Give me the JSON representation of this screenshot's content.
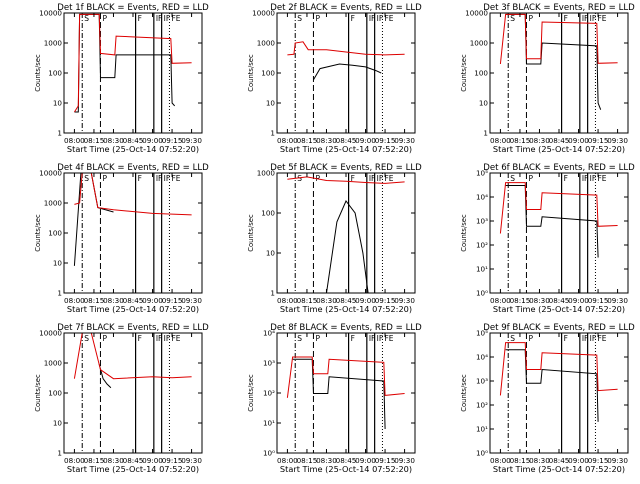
{
  "figure": {
    "xlabel": "Start Time (25-Oct-14 07:52:20)",
    "ylabel": "Counts/sec",
    "colors": {
      "events": "#000000",
      "lld": "#dd0000",
      "axis": "#000000",
      "background": "#ffffff"
    }
  },
  "chart_data": [
    {
      "type": "line",
      "title": "Det 1f BLACK = Events, RED = LLD",
      "x_ticks": [
        "08:00",
        "08:15",
        "08:30",
        "08:45",
        "09:00",
        "09:15",
        "09:30"
      ],
      "y_ticks": [
        "1",
        "10",
        "100",
        "1000",
        "10000"
      ],
      "ylim": [
        1,
        10000
      ],
      "yscale": "log",
      "markers": [
        {
          "label": "S",
          "x": "08:06"
        },
        {
          "label": "P",
          "x": "08:20"
        },
        {
          "label": "F",
          "x": "08:47"
        },
        {
          "label": "IF",
          "x": "09:01"
        },
        {
          "label": "IF",
          "x": "09:07"
        },
        {
          "label": "FE",
          "x": "09:13"
        }
      ],
      "series": [
        {
          "name": "Events",
          "points": [
            [
              "08:00",
              5
            ],
            [
              "08:03",
              5
            ],
            [
              "08:04",
              9000
            ],
            [
              "08:19",
              9000
            ],
            [
              "08:20",
              70
            ],
            [
              "08:31",
              70
            ],
            [
              "08:32",
              400
            ],
            [
              "09:14",
              400
            ],
            [
              "09:15",
              10
            ],
            [
              "09:17",
              8
            ]
          ]
        },
        {
          "name": "LLD",
          "points": [
            [
              "08:00",
              5
            ],
            [
              "08:03",
              8
            ],
            [
              "08:04",
              9000
            ],
            [
              "08:19",
              9000
            ],
            [
              "08:20",
              450
            ],
            [
              "08:31",
              400
            ],
            [
              "08:32",
              1700
            ],
            [
              "09:14",
              1400
            ],
            [
              "09:15",
              210
            ],
            [
              "09:30",
              220
            ]
          ]
        }
      ]
    },
    {
      "type": "line",
      "title": "Det 2f BLACK = Events, RED = LLD",
      "x_ticks": [
        "08:00",
        "08:15",
        "08:30",
        "08:45",
        "09:00",
        "09:15",
        "09:30"
      ],
      "y_ticks": [
        "1",
        "10",
        "100",
        "1000",
        "10000"
      ],
      "ylim": [
        1,
        10000
      ],
      "yscale": "log",
      "markers": [
        {
          "label": "S",
          "x": "08:06"
        },
        {
          "label": "P",
          "x": "08:20"
        },
        {
          "label": "F",
          "x": "08:47"
        },
        {
          "label": "IF",
          "x": "09:01"
        },
        {
          "label": "IF",
          "x": "09:07"
        },
        {
          "label": "FE",
          "x": "09:13"
        }
      ],
      "series": [
        {
          "name": "Events",
          "points": [
            [
              "08:20",
              60
            ],
            [
              "08:25",
              140
            ],
            [
              "08:40",
              200
            ],
            [
              "08:50",
              180
            ],
            [
              "09:00",
              160
            ],
            [
              "09:08",
              120
            ],
            [
              "09:12",
              100
            ]
          ]
        },
        {
          "name": "LLD",
          "points": [
            [
              "08:00",
              400
            ],
            [
              "08:05",
              420
            ],
            [
              "08:06",
              1000
            ],
            [
              "08:12",
              1100
            ],
            [
              "08:16",
              600
            ],
            [
              "08:30",
              600
            ],
            [
              "08:45",
              500
            ],
            [
              "09:00",
              420
            ],
            [
              "09:15",
              400
            ],
            [
              "09:30",
              420
            ]
          ]
        }
      ]
    },
    {
      "type": "line",
      "title": "Det 3f BLACK = Events, RED = LLD",
      "x_ticks": [
        "08:00",
        "08:15",
        "08:30",
        "08:45",
        "09:00",
        "09:15",
        "09:30"
      ],
      "y_ticks": [
        "1",
        "10",
        "100",
        "1000",
        "10000"
      ],
      "ylim": [
        1,
        10000
      ],
      "yscale": "log",
      "markers": [
        {
          "label": "S",
          "x": "08:06"
        },
        {
          "label": "P",
          "x": "08:20"
        },
        {
          "label": "F",
          "x": "08:47"
        },
        {
          "label": "IF",
          "x": "09:01"
        },
        {
          "label": "IF",
          "x": "09:07"
        },
        {
          "label": "FE",
          "x": "09:13"
        }
      ],
      "series": [
        {
          "name": "Events",
          "points": [
            [
              "08:04",
              9000
            ],
            [
              "08:19",
              9000
            ],
            [
              "08:20",
              200
            ],
            [
              "08:31",
              200
            ],
            [
              "08:32",
              1000
            ],
            [
              "09:14",
              800
            ],
            [
              "09:15",
              10
            ],
            [
              "09:17",
              6
            ]
          ]
        },
        {
          "name": "LLD",
          "points": [
            [
              "08:00",
              200
            ],
            [
              "08:04",
              9000
            ],
            [
              "08:19",
              9000
            ],
            [
              "08:20",
              300
            ],
            [
              "08:31",
              300
            ],
            [
              "08:32",
              5000
            ],
            [
              "09:14",
              4500
            ],
            [
              "09:15",
              210
            ],
            [
              "09:30",
              220
            ]
          ]
        }
      ]
    },
    {
      "type": "line",
      "title": "Det 4f BLACK = Events, RED = LLD",
      "x_ticks": [
        "08:00",
        "08:15",
        "08:30",
        "08:45",
        "09:00",
        "09:15",
        "09:30"
      ],
      "y_ticks": [
        "1",
        "10",
        "100",
        "1000",
        "10000"
      ],
      "ylim": [
        1,
        10000
      ],
      "yscale": "log",
      "markers": [
        {
          "label": "S",
          "x": "08:06"
        },
        {
          "label": "P",
          "x": "08:20"
        },
        {
          "label": "F",
          "x": "08:47"
        },
        {
          "label": "IF",
          "x": "09:01"
        },
        {
          "label": "IF",
          "x": "09:07"
        },
        {
          "label": "FE",
          "x": "09:13"
        }
      ],
      "series": [
        {
          "name": "Events",
          "points": [
            [
              "08:00",
              8
            ],
            [
              "08:05",
              10000
            ],
            [
              "08:13",
              10000
            ],
            [
              "08:18",
              700
            ],
            [
              "08:30",
              500
            ]
          ]
        },
        {
          "name": "LLD",
          "points": [
            [
              "08:00",
              900
            ],
            [
              "08:04",
              1000
            ],
            [
              "08:06",
              10000
            ],
            [
              "08:13",
              10000
            ],
            [
              "08:18",
              700
            ],
            [
              "08:30",
              600
            ],
            [
              "09:00",
              450
            ],
            [
              "09:30",
              400
            ]
          ]
        }
      ]
    },
    {
      "type": "line",
      "title": "Det 5f BLACK = Events, RED = LLD",
      "x_ticks": [
        "08:00",
        "08:15",
        "08:30",
        "08:45",
        "09:00",
        "09:15",
        "09:30"
      ],
      "y_ticks": [
        "1",
        "10",
        "100",
        "1000"
      ],
      "ylim": [
        1,
        1000
      ],
      "yscale": "log",
      "markers": [
        {
          "label": "S",
          "x": "08:06"
        },
        {
          "label": "P",
          "x": "08:20"
        },
        {
          "label": "F",
          "x": "08:47"
        },
        {
          "label": "IF",
          "x": "09:01"
        },
        {
          "label": "IF",
          "x": "09:07"
        },
        {
          "label": "FE",
          "x": "09:13"
        }
      ],
      "series": [
        {
          "name": "Events",
          "points": [
            [
              "08:30",
              1
            ],
            [
              "08:38",
              60
            ],
            [
              "08:45",
              200
            ],
            [
              "08:52",
              100
            ],
            [
              "08:58",
              10
            ],
            [
              "09:02",
              1
            ]
          ]
        },
        {
          "name": "LLD",
          "points": [
            [
              "08:00",
              700
            ],
            [
              "08:15",
              800
            ],
            [
              "08:30",
              650
            ],
            [
              "08:45",
              620
            ],
            [
              "09:00",
              580
            ],
            [
              "09:15",
              550
            ],
            [
              "09:30",
              600
            ]
          ]
        }
      ]
    },
    {
      "type": "line",
      "title": "Det 6f BLACK = Events, RED = LLD",
      "x_ticks": [
        "08:00",
        "08:15",
        "08:30",
        "08:45",
        "09:00",
        "09:15",
        "09:30"
      ],
      "y_ticks": [
        "10⁰",
        "10¹",
        "10²",
        "10³",
        "10⁴",
        "10⁵"
      ],
      "ylim": [
        1,
        100000
      ],
      "yscale": "log",
      "markers": [
        {
          "label": "S",
          "x": "08:06"
        },
        {
          "label": "P",
          "x": "08:20"
        },
        {
          "label": "F",
          "x": "08:47"
        },
        {
          "label": "IF",
          "x": "09:01"
        },
        {
          "label": "IF",
          "x": "09:07"
        },
        {
          "label": "FE",
          "x": "09:13"
        }
      ],
      "series": [
        {
          "name": "Events",
          "points": [
            [
              "08:04",
              30000
            ],
            [
              "08:19",
              30000
            ],
            [
              "08:20",
              600
            ],
            [
              "08:31",
              600
            ],
            [
              "08:32",
              1500
            ],
            [
              "09:14",
              1000
            ],
            [
              "09:15",
              30
            ]
          ]
        },
        {
          "name": "LLD",
          "points": [
            [
              "08:00",
              300
            ],
            [
              "08:04",
              40000
            ],
            [
              "08:19",
              40000
            ],
            [
              "08:20",
              3000
            ],
            [
              "08:31",
              3000
            ],
            [
              "08:32",
              15000
            ],
            [
              "09:14",
              12000
            ],
            [
              "09:15",
              600
            ],
            [
              "09:30",
              650
            ]
          ]
        }
      ]
    },
    {
      "type": "line",
      "title": "Det 7f BLACK = Events, RED = LLD",
      "x_ticks": [
        "08:00",
        "08:15",
        "08:30",
        "08:45",
        "09:00",
        "09:15",
        "09:30"
      ],
      "y_ticks": [
        "1",
        "10",
        "100",
        "1000",
        "10000"
      ],
      "ylim": [
        1,
        10000
      ],
      "yscale": "log",
      "markers": [
        {
          "label": "S",
          "x": "08:06"
        },
        {
          "label": "P",
          "x": "08:20"
        },
        {
          "label": "F",
          "x": "08:47"
        },
        {
          "label": "IF",
          "x": "09:01"
        },
        {
          "label": "IF",
          "x": "09:07"
        },
        {
          "label": "FE",
          "x": "09:13"
        }
      ],
      "series": [
        {
          "name": "Events",
          "points": [
            [
              "08:19",
              900
            ],
            [
              "08:22",
              300
            ],
            [
              "08:25",
              200
            ],
            [
              "08:28",
              150
            ]
          ]
        },
        {
          "name": "LLD",
          "points": [
            [
              "08:00",
              300
            ],
            [
              "08:06",
              10000
            ],
            [
              "08:13",
              10000
            ],
            [
              "08:20",
              600
            ],
            [
              "08:30",
              300
            ],
            [
              "09:00",
              350
            ],
            [
              "09:15",
              320
            ],
            [
              "09:30",
              350
            ]
          ]
        }
      ]
    },
    {
      "type": "line",
      "title": "Det 8f BLACK = Events, RED = LLD",
      "x_ticks": [
        "08:00",
        "08:15",
        "08:30",
        "08:45",
        "09:00",
        "09:15",
        "09:30"
      ],
      "y_ticks": [
        "10⁰",
        "10¹",
        "10²",
        "10³",
        "10⁴"
      ],
      "ylim": [
        1,
        100000
      ],
      "yscale": "log",
      "markers": [
        {
          "label": "S",
          "x": "08:06"
        },
        {
          "label": "P",
          "x": "08:20"
        },
        {
          "label": "F",
          "x": "08:47"
        },
        {
          "label": "IF",
          "x": "09:01"
        },
        {
          "label": "IF",
          "x": "09:07"
        },
        {
          "label": "FE",
          "x": "09:13"
        }
      ],
      "series": [
        {
          "name": "Events",
          "points": [
            [
              "08:04",
              8000
            ],
            [
              "08:19",
              8000
            ],
            [
              "08:20",
              300
            ],
            [
              "08:31",
              300
            ],
            [
              "08:32",
              1500
            ],
            [
              "09:14",
              1000
            ],
            [
              "09:15",
              10
            ]
          ]
        },
        {
          "name": "LLD",
          "points": [
            [
              "08:00",
              200
            ],
            [
              "08:04",
              10000
            ],
            [
              "08:19",
              10000
            ],
            [
              "08:20",
              2000
            ],
            [
              "08:31",
              2000
            ],
            [
              "08:32",
              8000
            ],
            [
              "09:14",
              6000
            ],
            [
              "09:15",
              250
            ],
            [
              "09:30",
              300
            ]
          ]
        }
      ]
    },
    {
      "type": "line",
      "title": "Det 9f BLACK = Events, RED = LLD",
      "x_ticks": [
        "08:00",
        "08:15",
        "08:30",
        "08:45",
        "09:00",
        "09:15",
        "09:30"
      ],
      "y_ticks": [
        "10⁰",
        "10¹",
        "10²",
        "10³",
        "10⁴",
        "10⁵"
      ],
      "ylim": [
        1,
        100000
      ],
      "yscale": "log",
      "markers": [
        {
          "label": "S",
          "x": "08:06"
        },
        {
          "label": "P",
          "x": "08:20"
        },
        {
          "label": "F",
          "x": "08:47"
        },
        {
          "label": "IF",
          "x": "09:01"
        },
        {
          "label": "IF",
          "x": "09:07"
        },
        {
          "label": "FE",
          "x": "09:13"
        }
      ],
      "series": [
        {
          "name": "Events",
          "points": [
            [
              "08:04",
              20000
            ],
            [
              "08:19",
              20000
            ],
            [
              "08:20",
              800
            ],
            [
              "08:31",
              800
            ],
            [
              "08:32",
              3000
            ],
            [
              "09:14",
              2000
            ],
            [
              "09:15",
              20
            ]
          ]
        },
        {
          "name": "LLD",
          "points": [
            [
              "08:00",
              250
            ],
            [
              "08:04",
              40000
            ],
            [
              "08:19",
              40000
            ],
            [
              "08:20",
              3000
            ],
            [
              "08:31",
              3000
            ],
            [
              "08:32",
              15000
            ],
            [
              "09:14",
              12000
            ],
            [
              "09:15",
              400
            ],
            [
              "09:30",
              450
            ]
          ]
        }
      ]
    }
  ]
}
